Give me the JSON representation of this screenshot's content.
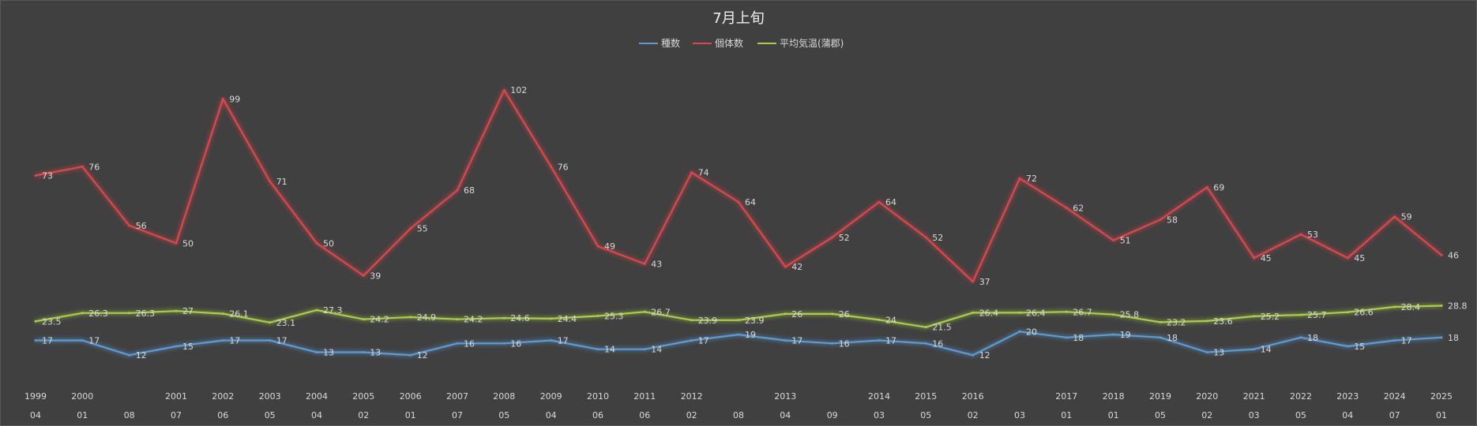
{
  "chart_data": {
    "type": "line",
    "title": "7月上旬",
    "legend_position": "top",
    "grid": false,
    "x_year_labels": [
      "1999",
      "2000",
      "",
      "2001",
      "2002",
      "2003",
      "2004",
      "2005",
      "2006",
      "2007",
      "2008",
      "2009",
      "2010",
      "2011",
      "2012",
      "",
      "2013",
      "",
      "2014",
      "2015",
      "2016",
      "",
      "2017",
      "2018",
      "2019",
      "2020",
      "2021",
      "2022",
      "2023",
      "2024",
      "2025"
    ],
    "x_day_labels": [
      "04",
      "01",
      "08",
      "07",
      "06",
      "05",
      "04",
      "02",
      "01",
      "07",
      "05",
      "04",
      "06",
      "06",
      "02",
      "08",
      "04",
      "09",
      "03",
      "05",
      "02",
      "03",
      "01",
      "01",
      "05",
      "02",
      "03",
      "05",
      "04",
      "07",
      "01"
    ],
    "ylim": [
      0,
      120
    ],
    "series": [
      {
        "name": "種数",
        "color": "#5b9bd5",
        "values": [
          17,
          17,
          12,
          15,
          17,
          17,
          13,
          13,
          12,
          16,
          16,
          17,
          14,
          14,
          17,
          19,
          17,
          16,
          17,
          16,
          12,
          20,
          18,
          19,
          18,
          13,
          14,
          18,
          15,
          17,
          18
        ]
      },
      {
        "name": "個体数",
        "color": "#e0454a",
        "values": [
          73,
          76,
          56,
          50,
          99,
          71,
          50,
          39,
          55,
          68,
          102,
          76,
          49,
          43,
          74,
          64,
          42,
          52,
          64,
          52,
          37,
          72,
          62,
          51,
          58,
          69,
          45,
          53,
          45,
          59,
          46
        ]
      },
      {
        "name": "平均気温(蒲郡)",
        "color": "#a9d044",
        "values": [
          23.5,
          26.3,
          26.3,
          27,
          26.1,
          23.1,
          27.3,
          24.2,
          24.9,
          24.2,
          24.6,
          24.4,
          25.3,
          26.7,
          23.9,
          23.9,
          26,
          26,
          24,
          21.5,
          26.4,
          26.4,
          26.7,
          25.8,
          23.2,
          23.6,
          25.2,
          25.7,
          26.6,
          28.4,
          28.8
        ]
      }
    ]
  }
}
